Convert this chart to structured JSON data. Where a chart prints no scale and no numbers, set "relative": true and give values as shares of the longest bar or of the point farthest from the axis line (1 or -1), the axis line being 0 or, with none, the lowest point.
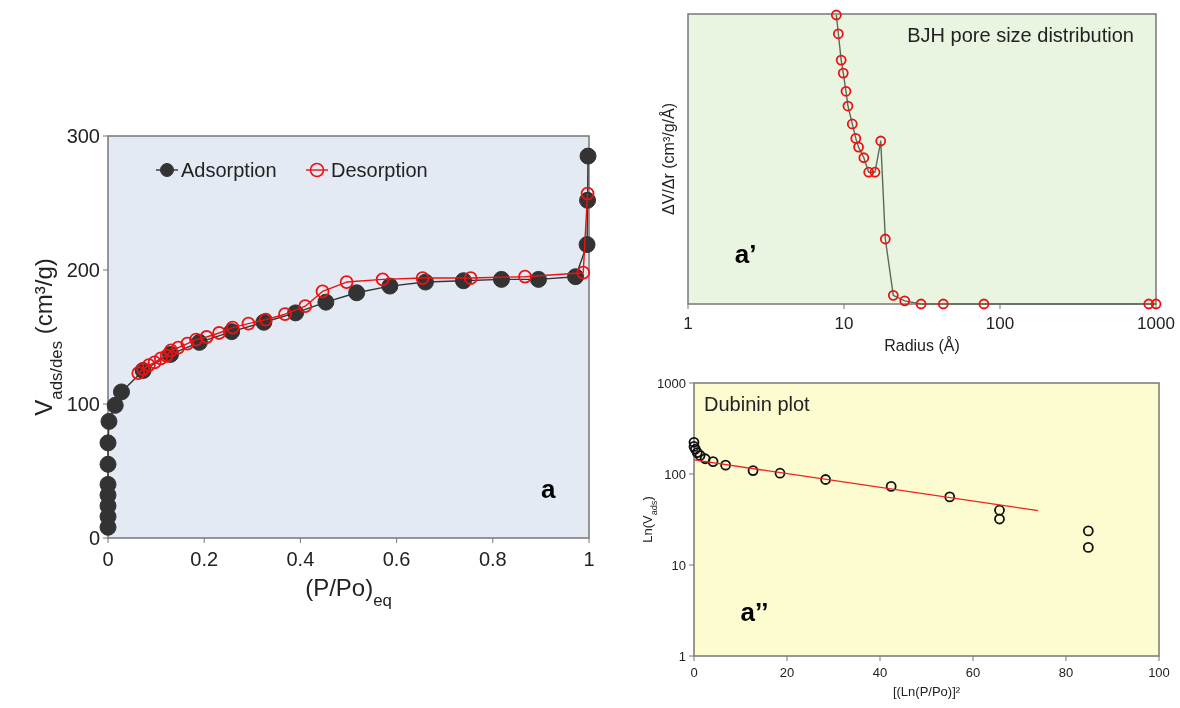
{
  "chart_data": [
    {
      "type": "line",
      "xlabel": "(P/Po)$_{eq}$",
      "ylabel": "V$_{ads/des}$ (cm³/g)",
      "xlim": [
        0,
        1
      ],
      "xticks": [
        0,
        0.2,
        0.4,
        0.6,
        0.8,
        1
      ],
      "ylim": [
        0,
        300
      ],
      "yticks": [
        0,
        100,
        200,
        300
      ],
      "legend": "top left",
      "marker": "circle",
      "grid": false,
      "annotations": [
        "a"
      ],
      "series": [
        {
          "name": "Adsorption",
          "color": "#333333",
          "x": [
            0,
            0,
            0,
            0,
            0,
            0,
            0,
            0.002,
            0.015,
            0.028,
            0.073,
            0.13,
            0.19,
            0.257,
            0.324,
            0.39,
            0.453,
            0.517,
            0.586,
            0.66,
            0.739,
            0.818,
            0.895,
            0.972,
            0.996,
            0.997,
            0.998
          ],
          "values": [
            8,
            16,
            24,
            32,
            40,
            55,
            71,
            87,
            99,
            109,
            125,
            137,
            146,
            154,
            161,
            168,
            176,
            183,
            188,
            191,
            192,
            193,
            193,
            195,
            219,
            252,
            285
          ]
        },
        {
          "name": "Desorption",
          "color": "#ee1111",
          "x": [
            0.063,
            0.073,
            0.085,
            0.097,
            0.11,
            0.122,
            0.131,
            0.146,
            0.165,
            0.183,
            0.205,
            0.231,
            0.259,
            0.292,
            0.328,
            0.368,
            0.41,
            0.446,
            0.496,
            0.571,
            0.654,
            0.754,
            0.867,
            0.988,
            0.997
          ],
          "values": [
            123,
            126,
            129,
            131,
            134,
            136,
            140,
            142,
            145,
            148,
            150,
            153,
            157,
            160,
            163,
            167,
            173,
            184,
            191,
            193,
            194,
            194,
            195,
            198,
            257
          ]
        }
      ]
    },
    {
      "type": "line",
      "title": "BJH pore size distribution",
      "xlabel": "Radius (Å)",
      "ylabel": "ΔV/Δr (cm³/g/Å)",
      "log": "x",
      "relative": true,
      "xlim": [
        1,
        1000
      ],
      "xticks": [
        1,
        10,
        100,
        1000
      ],
      "marker": "circle",
      "grid": false,
      "annotations": [
        "a’"
      ],
      "series": [
        {
          "color": "#ee1111",
          "x": [
            8.93,
            9.2,
            9.59,
            9.89,
            10.3,
            10.6,
            11.3,
            11.9,
            12.4,
            13.4,
            14.4,
            15.8,
            17.2,
            18.4,
            20.7,
            24.5,
            31.2,
            43.3,
            78.9,
            899,
            1000
          ],
          "values": [
            1,
            0.935,
            0.844,
            0.799,
            0.736,
            0.685,
            0.623,
            0.573,
            0.543,
            0.506,
            0.456,
            0.456,
            0.564,
            0.225,
            0.03,
            0.011,
            0,
            0,
            0,
            0,
            0
          ]
        }
      ]
    },
    {
      "type": "scatter",
      "title": "Dubinin plot",
      "xlabel": "[(Ln(P/Po)]²",
      "ylabel": "Ln(V$_{ads}$)",
      "log": "y",
      "xlim": [
        0,
        100
      ],
      "xticks": [
        0,
        20,
        40,
        60,
        80,
        100
      ],
      "ylim": [
        1,
        1000
      ],
      "yticks": [
        1,
        10,
        100,
        1000
      ],
      "marker": "circle",
      "grid": false,
      "annotations": [
        "a’’"
      ],
      "series": [
        {
          "color": "#111111",
          "x": [
            0,
            0,
            0.3,
            0.7,
            1.3,
            2.4,
            4.1,
            6.8,
            12.7,
            18.5,
            28.3,
            42.4,
            55,
            65.7,
            65.7,
            84.8,
            84.8
          ],
          "values": [
            223,
            201,
            187,
            172,
            160,
            147,
            137,
            125,
            109,
            102,
            87,
            73,
            56,
            40,
            32,
            23.7,
            15.6
          ]
        },
        {
          "type": "line",
          "color": "#ee2222",
          "marker": "none",
          "x": [
            0,
            74
          ],
          "values": [
            143,
            39.6
          ]
        }
      ]
    }
  ]
}
